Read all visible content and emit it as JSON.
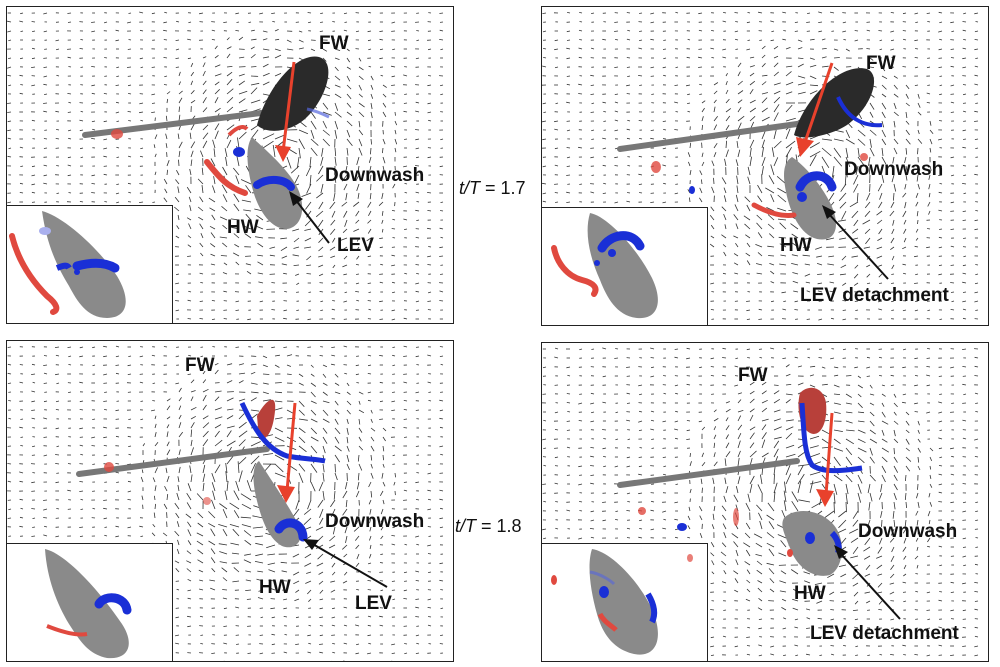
{
  "time_labels": [
    {
      "prefix": "t/T",
      "value": "= 1.7"
    },
    {
      "prefix": "t/T",
      "value": "= 1.8"
    }
  ],
  "panels": [
    {
      "fw": "FW",
      "hw": "HW",
      "downwash": "Downwash",
      "lev": "LEV"
    },
    {
      "fw": "FW",
      "hw": "HW",
      "downwash": "Downwash",
      "lev": "LEV detachment"
    },
    {
      "fw": "FW",
      "hw": "HW",
      "downwash": "Downwash",
      "lev": "LEV"
    },
    {
      "fw": "FW",
      "hw": "HW",
      "downwash": "Downwash",
      "lev": "LEV detachment"
    }
  ],
  "colors": {
    "positive_vorticity": "#e0493f",
    "negative_vorticity": "#1a2fd6",
    "body": "#8a8a8a",
    "forewing_top": "#2a2a2a",
    "downwash_arrow": "#e8412c"
  }
}
